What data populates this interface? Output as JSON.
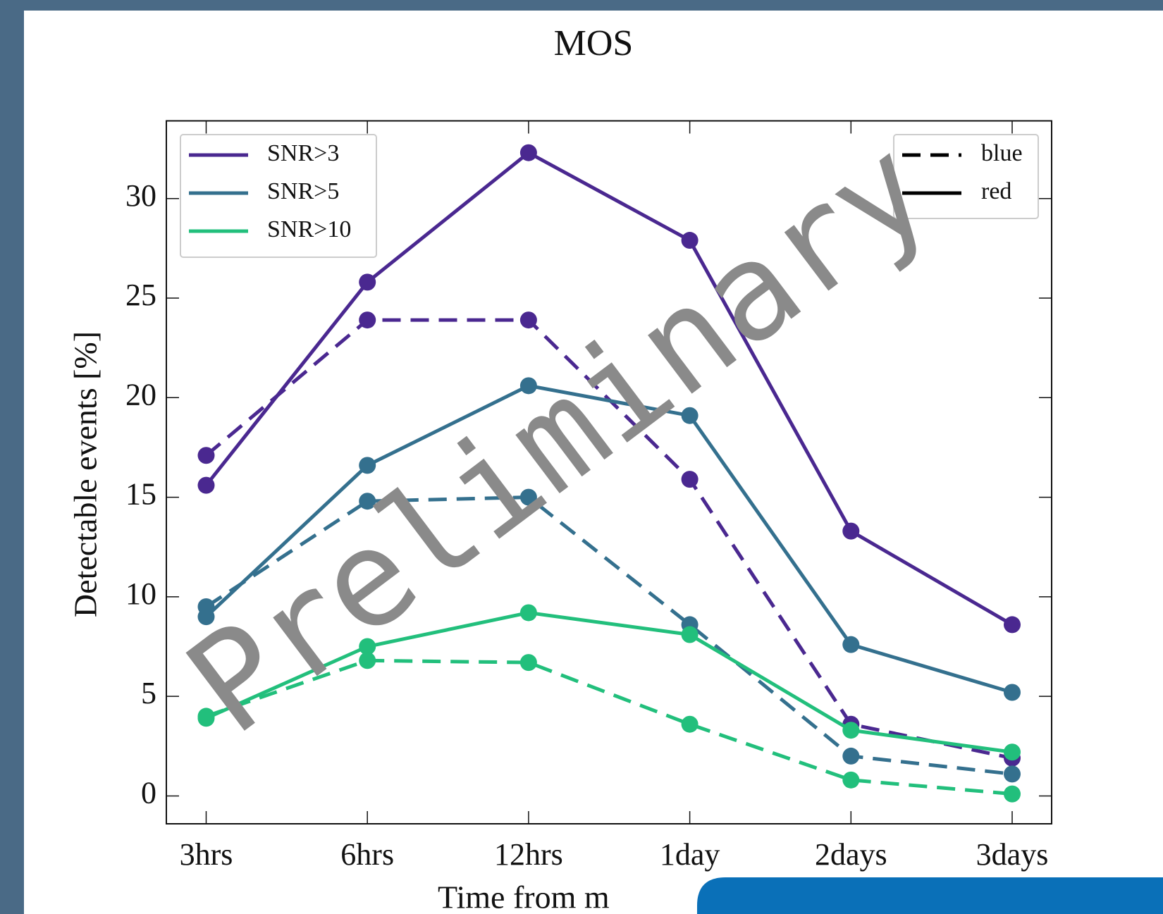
{
  "chart_data": {
    "type": "line",
    "title": "MOS",
    "x_label": "Time from m",
    "y_label": "Detectable events [%]",
    "watermark": "Preliminary",
    "categories": [
      "3hrs",
      "6hrs",
      "12hrs",
      "1day",
      "2days",
      "3days"
    ],
    "ylim": [
      -1.4,
      33.9
    ],
    "yticks": [
      0,
      5,
      10,
      15,
      20,
      25,
      30
    ],
    "snr_legend": [
      {
        "name": "SNR>3",
        "color": "#4a2890"
      },
      {
        "name": "SNR>5",
        "color": "#34708e"
      },
      {
        "name": "SNR>10",
        "color": "#22bf7c"
      }
    ],
    "band_legend": [
      {
        "name": "blue",
        "dashed": true
      },
      {
        "name": "red",
        "dashed": false
      }
    ],
    "series": [
      {
        "snr": 0,
        "band": 1,
        "values": [
          15.6,
          25.8,
          32.3,
          27.9,
          13.3,
          8.6
        ]
      },
      {
        "snr": 0,
        "band": 0,
        "values": [
          17.1,
          23.9,
          23.9,
          15.9,
          3.6,
          1.9
        ]
      },
      {
        "snr": 1,
        "band": 1,
        "values": [
          9.0,
          16.6,
          20.6,
          19.1,
          7.6,
          5.2
        ]
      },
      {
        "snr": 1,
        "band": 0,
        "values": [
          9.5,
          14.8,
          15.0,
          8.6,
          2.0,
          1.1
        ]
      },
      {
        "snr": 2,
        "band": 1,
        "values": [
          3.9,
          7.5,
          9.2,
          8.1,
          3.3,
          2.2
        ]
      },
      {
        "snr": 2,
        "band": 0,
        "values": [
          4.0,
          6.8,
          6.7,
          3.6,
          0.8,
          0.1
        ]
      }
    ]
  }
}
